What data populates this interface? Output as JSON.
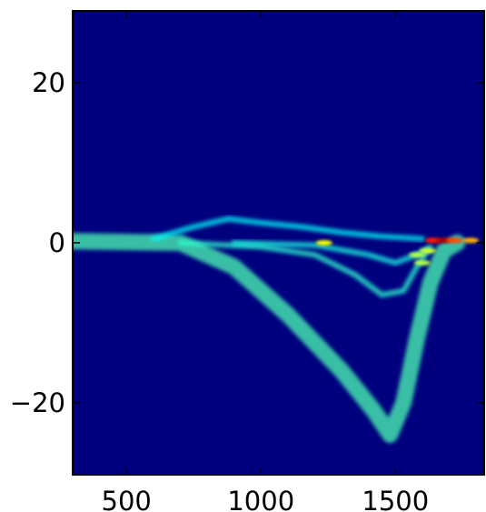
{
  "chart_data": {
    "type": "heatmap",
    "title": "",
    "xlabel": "",
    "ylabel": "",
    "xlim": [
      300,
      1830
    ],
    "ylim": [
      -29,
      29
    ],
    "grid": false,
    "legend": "none",
    "colormap": "jet",
    "background_color": "#00007f",
    "x_ticks": [
      {
        "value": 500,
        "label": "500"
      },
      {
        "value": 1000,
        "label": "1000"
      },
      {
        "value": 1500,
        "label": "1500"
      }
    ],
    "y_ticks": [
      {
        "value": 20,
        "label": "20"
      },
      {
        "value": 0,
        "label": "0"
      },
      {
        "value": -20,
        "label": "−20"
      }
    ],
    "features": [
      {
        "name": "central ridge",
        "intensity": 0.35,
        "points": [
          [
            300,
            0.3
          ],
          [
            800,
            0.3
          ],
          [
            1200,
            0.3
          ],
          [
            1550,
            0.3
          ],
          [
            1830,
            0.3
          ]
        ]
      },
      {
        "name": "deep band",
        "intensity": 0.45,
        "points": [
          [
            300,
            0.2
          ],
          [
            700,
            0.0
          ],
          [
            900,
            -3
          ],
          [
            1100,
            -9
          ],
          [
            1300,
            -16
          ],
          [
            1420,
            -21
          ],
          [
            1480,
            -24
          ],
          [
            1530,
            -20
          ],
          [
            1580,
            -12
          ],
          [
            1630,
            -5
          ],
          [
            1680,
            -1
          ],
          [
            1730,
            0
          ]
        ]
      },
      {
        "name": "upper arc",
        "intensity": 0.38,
        "points": [
          [
            600,
            0.5
          ],
          [
            750,
            2
          ],
          [
            880,
            3
          ],
          [
            1000,
            2.5
          ],
          [
            1150,
            2
          ],
          [
            1300,
            1.3
          ],
          [
            1450,
            0.8
          ],
          [
            1600,
            0.5
          ]
        ]
      },
      {
        "name": "lower arc",
        "intensity": 0.42,
        "points": [
          [
            700,
            0
          ],
          [
            1000,
            -0.5
          ],
          [
            1200,
            -1.5
          ],
          [
            1350,
            -4
          ],
          [
            1450,
            -6.5
          ],
          [
            1530,
            -6
          ],
          [
            1580,
            -3
          ],
          [
            1620,
            -1
          ]
        ]
      },
      {
        "name": "inner arc",
        "intensity": 0.4,
        "points": [
          [
            900,
            0
          ],
          [
            1200,
            -0.3
          ],
          [
            1400,
            -1.5
          ],
          [
            1500,
            -2.5
          ],
          [
            1580,
            -1.5
          ],
          [
            1630,
            -0.5
          ]
        ]
      }
    ],
    "hot_spots": [
      {
        "x": 1235,
        "y": 0.0,
        "intensity": 0.62
      },
      {
        "x": 1580,
        "y": -1.5,
        "intensity": 0.55
      },
      {
        "x": 1600,
        "y": -2.5,
        "intensity": 0.55
      },
      {
        "x": 1620,
        "y": -1.0,
        "intensity": 0.58
      },
      {
        "x": 1640,
        "y": 0.3,
        "intensity": 0.85
      },
      {
        "x": 1680,
        "y": 0.3,
        "intensity": 0.95
      },
      {
        "x": 1720,
        "y": 0.3,
        "intensity": 0.8
      },
      {
        "x": 1780,
        "y": 0.3,
        "intensity": 0.7
      }
    ]
  }
}
